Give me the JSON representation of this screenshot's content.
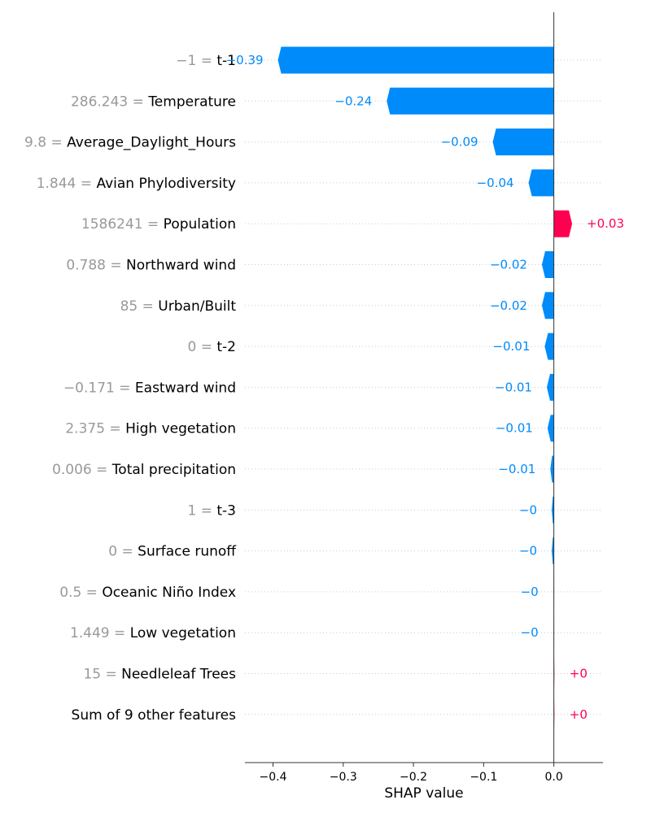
{
  "chart_data": {
    "type": "bar",
    "orientation": "horizontal",
    "xlabel": "SHAP value",
    "xlim": [
      -0.44,
      0.07
    ],
    "x_ticks": [
      -0.4,
      -0.3,
      -0.2,
      -0.1,
      0.0
    ],
    "x_tick_labels": [
      "−0.4",
      "−0.3",
      "−0.2",
      "−0.1",
      "0.0"
    ],
    "grid": "horizontal dotted row guides",
    "colors": {
      "positive": "#ff0051",
      "negative": "#008bfb",
      "value_text": "#999999"
    },
    "features": [
      {
        "value": "−1",
        "name": "t-1",
        "shap": -0.393,
        "label": "−0.39"
      },
      {
        "value": "286.243",
        "name": "Temperature",
        "shap": -0.238,
        "label": "−0.24"
      },
      {
        "value": "9.8",
        "name": "Average_Daylight_Hours",
        "shap": -0.087,
        "label": "−0.09"
      },
      {
        "value": "1.844",
        "name": "Avian Phylodiversity",
        "shap": -0.036,
        "label": "−0.04"
      },
      {
        "value": "1586241",
        "name": "Population",
        "shap": 0.026,
        "label": "+0.03"
      },
      {
        "value": "0.788",
        "name": "Northward wind",
        "shap": -0.017,
        "label": "−0.02"
      },
      {
        "value": "85",
        "name": "Urban/Built",
        "shap": -0.017,
        "label": "−0.02"
      },
      {
        "value": "0",
        "name": "t-2",
        "shap": -0.013,
        "label": "−0.01"
      },
      {
        "value": "−0.171",
        "name": "Eastward wind",
        "shap": -0.01,
        "label": "−0.01"
      },
      {
        "value": "2.375",
        "name": "High vegetation",
        "shap": -0.009,
        "label": "−0.01"
      },
      {
        "value": "0.006",
        "name": "Total precipitation",
        "shap": -0.005,
        "label": "−0.01"
      },
      {
        "value": "1",
        "name": "t-3",
        "shap": -0.003,
        "label": "−0"
      },
      {
        "value": "0",
        "name": "Surface runoff",
        "shap": -0.003,
        "label": "−0"
      },
      {
        "value": "0.5",
        "name": "Oceanic Niño Index",
        "shap": -0.001,
        "label": "−0"
      },
      {
        "value": "1.449",
        "name": "Low vegetation",
        "shap": -0.001,
        "label": "−0"
      },
      {
        "value": "15",
        "name": "Needleleaf Trees",
        "shap": 0.001,
        "label": "+0"
      },
      {
        "value": "",
        "name": "Sum of 9 other features",
        "shap": 0.001,
        "label": "+0"
      }
    ]
  }
}
